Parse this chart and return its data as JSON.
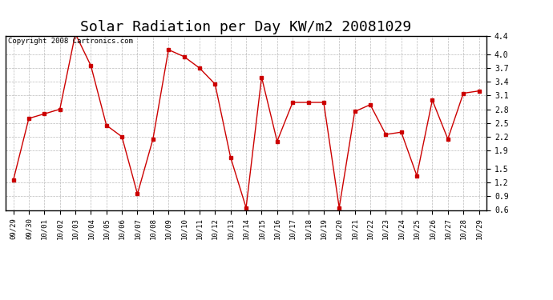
{
  "title": "Solar Radiation per Day KW/m2 20081029",
  "copyright": "Copyright 2008 Cartronics.com",
  "labels": [
    "09/29",
    "09/30",
    "10/01",
    "10/02",
    "10/03",
    "10/04",
    "10/05",
    "10/06",
    "10/07",
    "10/08",
    "10/09",
    "10/10",
    "10/11",
    "10/12",
    "10/13",
    "10/14",
    "10/15",
    "10/16",
    "10/17",
    "10/18",
    "10/19",
    "10/20",
    "10/21",
    "10/22",
    "10/23",
    "10/24",
    "10/25",
    "10/26",
    "10/27",
    "10/28",
    "10/29"
  ],
  "values": [
    1.25,
    2.6,
    2.7,
    2.8,
    4.45,
    3.75,
    2.45,
    2.2,
    0.95,
    2.15,
    4.1,
    3.95,
    3.7,
    3.35,
    1.75,
    0.65,
    3.5,
    2.1,
    2.95,
    2.95,
    2.95,
    0.65,
    2.75,
    2.9,
    2.25,
    2.3,
    1.35,
    3.0,
    2.15,
    3.15,
    3.2
  ],
  "line_color": "#cc0000",
  "marker": "s",
  "marker_size": 2.5,
  "ylim": [
    0.6,
    4.4
  ],
  "yticks": [
    4.4,
    4.0,
    3.7,
    3.4,
    3.1,
    2.8,
    2.5,
    2.2,
    1.9,
    1.5,
    1.2,
    0.9,
    0.6
  ],
  "bg_color": "#ffffff",
  "grid_color": "#aaaaaa",
  "title_fontsize": 13,
  "copyright_fontsize": 6.5
}
